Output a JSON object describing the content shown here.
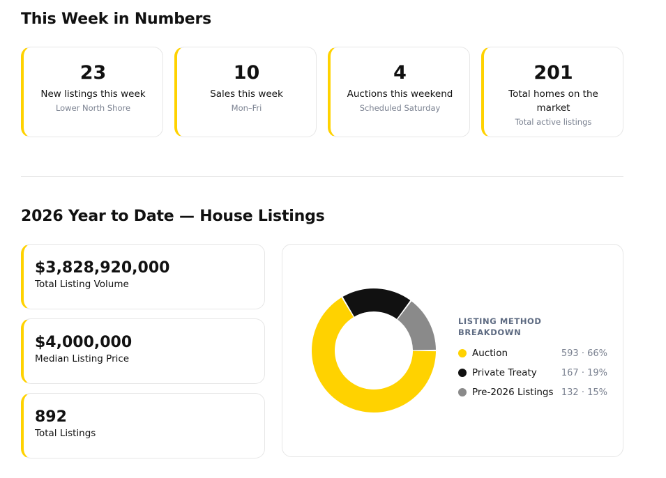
{
  "week": {
    "heading": "This Week in Numbers",
    "stats": [
      {
        "value": "23",
        "label": "New listings this week",
        "sub": "Lower North Shore"
      },
      {
        "value": "10",
        "label": "Sales this week",
        "sub": "Mon–Fri"
      },
      {
        "value": "4",
        "label": "Auctions this weekend",
        "sub": "Scheduled Saturday"
      },
      {
        "value": "201",
        "label": "Total homes on the market",
        "sub": "Total active listings"
      }
    ]
  },
  "ytd": {
    "heading": "2026 Year to Date — House Listings",
    "kpis": [
      {
        "value": "$3,828,920,000",
        "label": "Total Listing Volume"
      },
      {
        "value": "$4,000,000",
        "label": "Median Listing Price"
      },
      {
        "value": "892",
        "label": "Total Listings"
      }
    ],
    "legend_title": "LISTING METHOD BREAKDOWN",
    "legend": [
      {
        "name": "Auction",
        "value": "593 · 66%"
      },
      {
        "name": "Private Treaty",
        "value": "167 · 19%"
      },
      {
        "name": "Pre-2026 Listings",
        "value": "132 · 15%"
      }
    ]
  },
  "colors": {
    "accent": "#ffd200",
    "auction": "#ffd200",
    "private_treaty": "#111111",
    "pre_2026": "#8a8a8a",
    "muted_text": "#7a8190"
  },
  "chart_data": {
    "type": "pie",
    "donut": true,
    "categories": [
      "Auction",
      "Private Treaty",
      "Pre-2026 Listings"
    ],
    "values": [
      593,
      167,
      132
    ],
    "percentages": [
      66,
      19,
      15
    ],
    "colors": [
      "#ffd200",
      "#111111",
      "#8a8a8a"
    ],
    "legend_title": "LISTING METHOD BREAKDOWN",
    "legend_position": "right"
  }
}
